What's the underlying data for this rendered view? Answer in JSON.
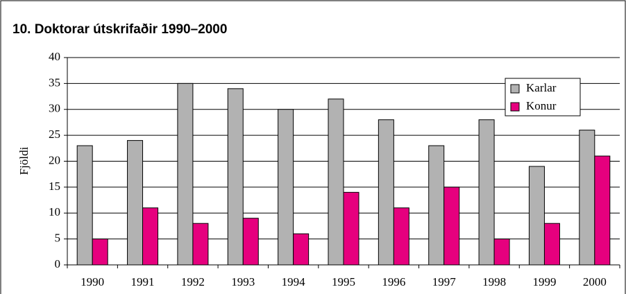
{
  "chart_data": {
    "type": "bar",
    "title": "10. Doktorar útskrifaðir 1990–2000",
    "y_label": "Fjöldi",
    "categories": [
      "1990",
      "1991",
      "1992",
      "1993",
      "1994",
      "1995",
      "1996",
      "1997",
      "1998",
      "1999",
      "2000"
    ],
    "series": [
      {
        "name": "Karlar",
        "color": "#b2b2b2",
        "values": [
          23,
          24,
          35,
          34,
          30,
          32,
          28,
          23,
          28,
          19,
          26
        ]
      },
      {
        "name": "Konur",
        "color": "#e6007e",
        "values": [
          5,
          11,
          8,
          9,
          6,
          14,
          11,
          15,
          5,
          8,
          21
        ]
      }
    ],
    "ylim": [
      0,
      40
    ],
    "yticks": [
      0,
      5,
      10,
      15,
      20,
      25,
      30,
      35,
      40
    ],
    "grid": true,
    "legend": "upper right"
  }
}
